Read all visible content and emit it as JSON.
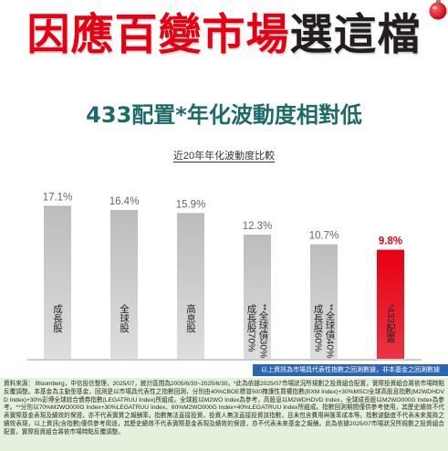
{
  "header": {
    "title_red": "因應百變市場",
    "title_dark": "選這檔",
    "subtitle": "433配置*年化波動度相對低",
    "ornament_icon": "ornament-icon"
  },
  "colors": {
    "title_red": "#e60012",
    "title_dark": "#221e1f",
    "subtitle": "#1d6b68",
    "banner_blue": "#2d66b0",
    "disclaimer_bg": "#e4f1dc"
  },
  "chart_data": {
    "type": "bar",
    "title": "近20年年化波動度比較",
    "xlabel": "",
    "ylabel": "",
    "grid": false,
    "legend": "none",
    "categories": [
      {
        "lines": [
          "成長股"
        ]
      },
      {
        "lines": [
          "全球股"
        ]
      },
      {
        "lines": [
          "高息股"
        ]
      },
      {
        "lines": [
          "成長股70%",
          "全球債30%"
        ],
        "note": "**"
      },
      {
        "lines": [
          "成長股60%",
          "全球債40%"
        ],
        "note": "**"
      },
      {
        "lines": [
          "433配置"
        ],
        "note": "*"
      }
    ],
    "values": [
      17.1,
      16.4,
      15.9,
      12.3,
      10.7,
      9.8
    ],
    "value_labels": [
      "17.1%",
      "16.4%",
      "15.9%",
      "12.3%",
      "10.7%",
      "9.8%"
    ],
    "bar_colors": [
      "#bcbcbc",
      "#bcbcbc",
      "#bcbcbc",
      "#bcbcbc",
      "#bcbcbc",
      "#e60012"
    ],
    "highlight_color": "#e60012"
  },
  "banner": {
    "text": "以上資訊為市場具代表性指數之回測數據，非本基金之回測數據"
  },
  "disclaimer": {
    "text": "資料來源： Bloomberg，中信投信整理，2025/07，統計區間為2005/6/30~2025/6/30。*此為依據2025/07市場狀況所規劃之投資組合配置，實際投資組合將依市場時點反覆調整。本基金為主動型基金，回測是以市場具代表性之指數回測，分別由40%CBOE標普500掩護性買權指數(BXM Index)+30%MSCI全球高股息指數(M2WDHDVD Index)+30%彭博全球綜合債券指數(LEGATRUU Index)所組成。全球股以M2WO Index為參考，高股息以M2WDHDVD Index，全球成長股以M2WO000G Index為參考。**分別以70%M2WO000G Index+30%LEGATRUU Index、60%M2WO000G Index+40%LEGATRUU Index所組成。指數回測期間僅供參考使用，其歷史績效不代表實際基金表現及績效的保證，亦不代表實質之報酬率。指數無法直接投資，投資人無法直接投資該指數，且未包含費用與匯率成本等。指數波動度不代表未來風險之績效表現，以上資訊(含指數)僅供參考用途，其歷史績效不代表實際基金表現及績效的保證，亦不代表未來基金之報酬。此為依據2025/07市場狀況所規劃之投資組合配置，實際投資組合將依市場時點反覆調整。"
  }
}
